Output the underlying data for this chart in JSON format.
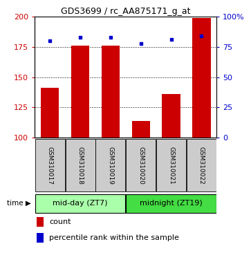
{
  "title": "GDS3699 / rc_AA875171_g_at",
  "samples": [
    "GSM310017",
    "GSM310018",
    "GSM310019",
    "GSM310020",
    "GSM310021",
    "GSM310022"
  ],
  "counts": [
    141,
    176,
    176,
    114,
    136,
    199
  ],
  "percentiles": [
    80,
    83,
    83,
    78,
    81,
    84
  ],
  "bar_color": "#cc0000",
  "dot_color": "#0000cc",
  "ylim_left": [
    100,
    200
  ],
  "ylim_right": [
    0,
    100
  ],
  "yticks_left": [
    100,
    125,
    150,
    175,
    200
  ],
  "yticks_right": [
    0,
    25,
    50,
    75,
    100
  ],
  "ytick_labels_left": [
    "100",
    "125",
    "150",
    "175",
    "200"
  ],
  "ytick_labels_right": [
    "0",
    "25",
    "50",
    "75",
    "100%"
  ],
  "groups": [
    {
      "label": "mid-day (ZT7)",
      "color": "#aaffaa"
    },
    {
      "label": "midnight (ZT19)",
      "color": "#44dd44"
    }
  ],
  "legend_count_label": "count",
  "legend_pct_label": "percentile rank within the sample",
  "grid_dotted_values": [
    125,
    150,
    175
  ],
  "bar_width": 0.6,
  "background_labels": "#cccccc",
  "title_fontsize": 9
}
